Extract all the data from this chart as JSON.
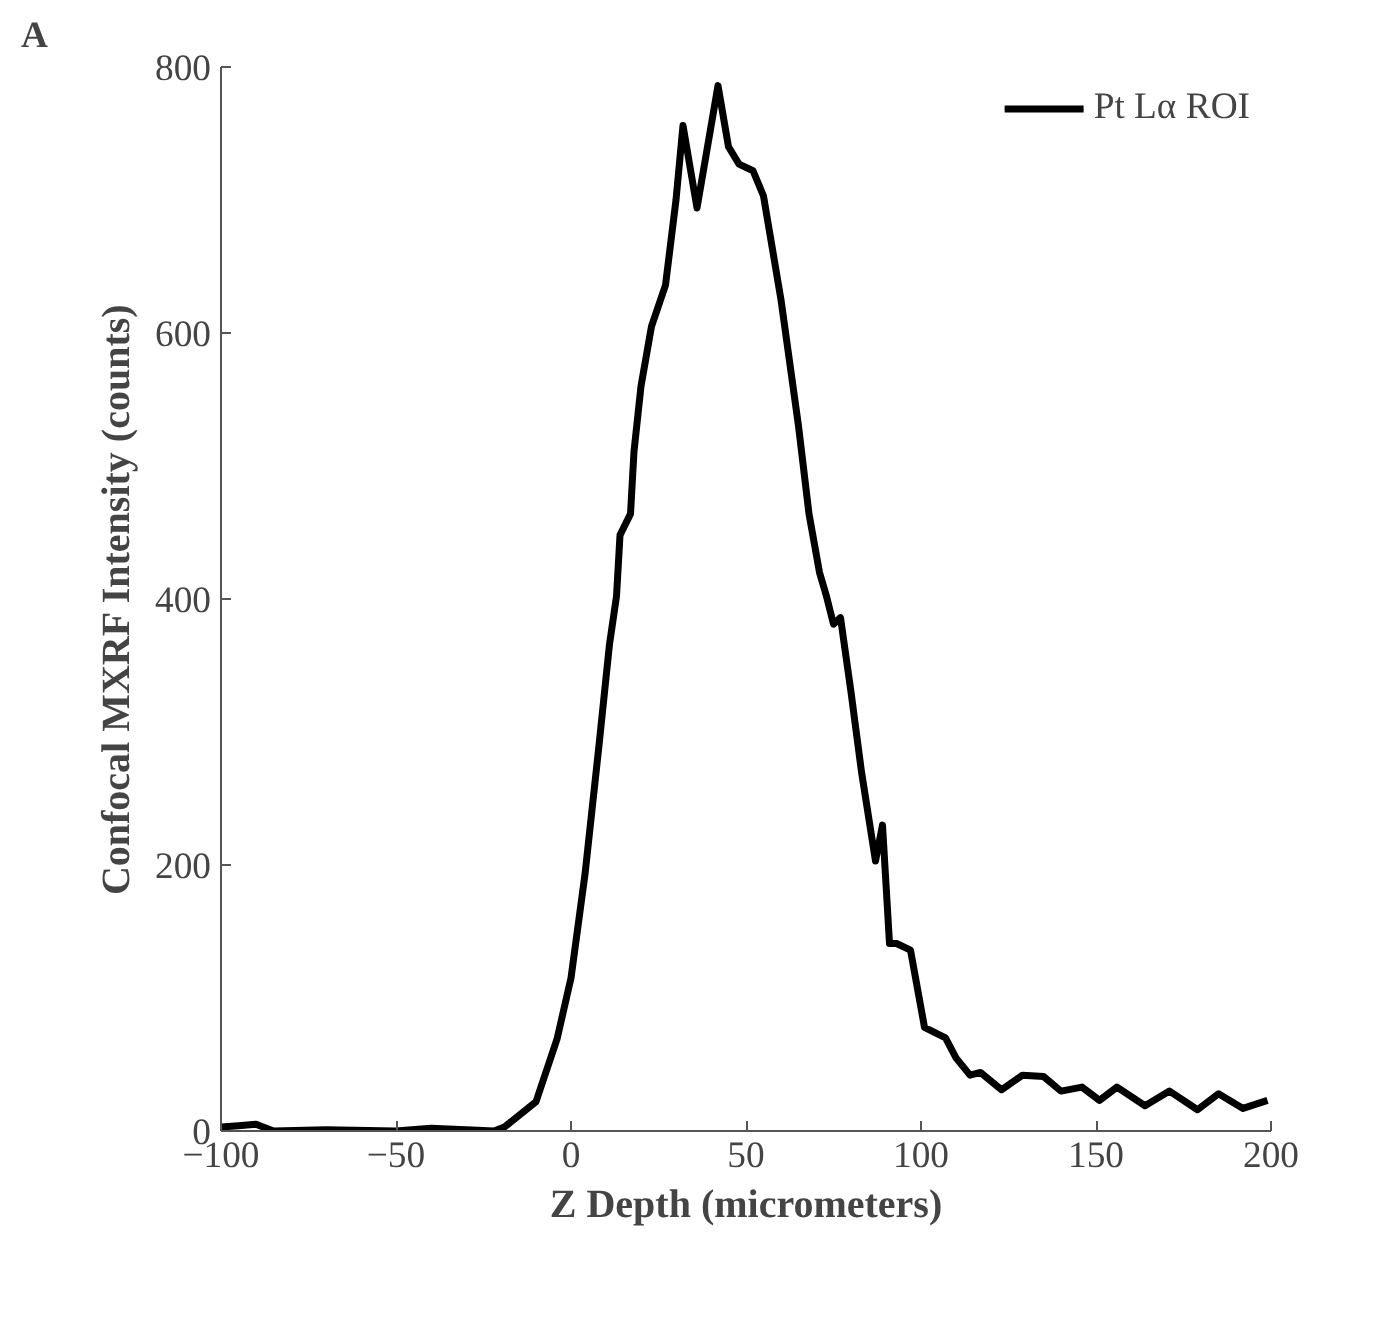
{
  "chart_data": {
    "type": "line",
    "xlabel": "Z Depth (micrometers)",
    "ylabel": "Confocal MXRF Intensity (counts)",
    "annotations": [
      "A"
    ],
    "xlim": [
      -100,
      200
    ],
    "xticks": [
      -100,
      -50,
      0,
      50,
      100,
      150,
      200
    ],
    "ylim": [
      0,
      800
    ],
    "yticks": [
      0,
      200,
      400,
      600,
      800
    ],
    "grid": false,
    "legend": "top right",
    "marker": "none",
    "line_style": "solid",
    "series": [
      {
        "name": "Pt Lα ROI",
        "color": "#000000",
        "x": [
          -100,
          -95,
          -90,
          -85,
          -70,
          -50,
          -40,
          -30,
          -22,
          -19,
          -10,
          -4,
          0,
          4,
          8,
          11,
          13,
          14,
          17,
          18,
          20,
          23,
          27,
          30,
          32,
          36,
          42,
          45,
          48,
          52,
          55,
          60,
          65,
          68,
          71,
          73,
          75,
          77,
          80,
          83,
          87,
          89,
          91,
          93,
          97,
          101,
          107,
          110,
          114,
          117,
          123,
          129,
          135,
          140,
          146,
          151,
          156,
          164,
          171,
          179,
          185,
          192,
          199
        ],
        "values": [
          3,
          4,
          5,
          0,
          1,
          0,
          2,
          1,
          0,
          3,
          22,
          69,
          115,
          193,
          290,
          366,
          402,
          448,
          464,
          511,
          560,
          605,
          636,
          700,
          756,
          694,
          786,
          740,
          727,
          722,
          703,
          625,
          530,
          464,
          420,
          402,
          381,
          386,
          330,
          270,
          203,
          230,
          141,
          141,
          136,
          78,
          70,
          55,
          42,
          44,
          31,
          42,
          41,
          30,
          33,
          23,
          33,
          19,
          30,
          16,
          28,
          17,
          23
        ]
      }
    ]
  }
}
